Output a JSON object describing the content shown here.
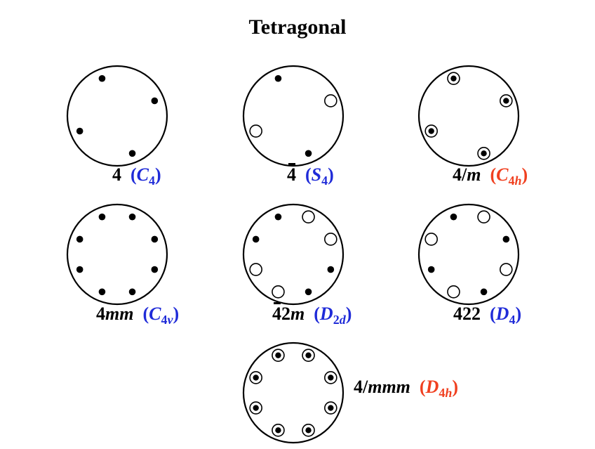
{
  "title": "Tetragonal",
  "colors": {
    "blue": "#1f2bd8",
    "red": "#f04020",
    "black": "#000000"
  },
  "groups": [
    {
      "id": "c4",
      "hm": [
        "4"
      ],
      "hm_italic": [],
      "hm_bar": false,
      "sch": [
        "C",
        "4",
        ""
      ],
      "sch_color": "blue",
      "poles": [
        {
          "azimuth": 112,
          "radius": 0.81,
          "marks": [
            "dot"
          ]
        },
        {
          "azimuth": 22,
          "radius": 0.81,
          "marks": [
            "dot"
          ]
        },
        {
          "azimuth": -68,
          "radius": 0.81,
          "marks": [
            "dot"
          ]
        },
        {
          "azimuth": -158,
          "radius": 0.81,
          "marks": [
            "dot"
          ]
        }
      ]
    },
    {
      "id": "s4",
      "hm": [
        "4"
      ],
      "hm_italic": [],
      "hm_bar": true,
      "sch": [
        "S",
        "4",
        ""
      ],
      "sch_color": "blue",
      "poles": [
        {
          "azimuth": 112,
          "radius": 0.81,
          "marks": [
            "dot"
          ]
        },
        {
          "azimuth": 22,
          "radius": 0.81,
          "marks": [
            "ring"
          ]
        },
        {
          "azimuth": -68,
          "radius": 0.81,
          "marks": [
            "dot"
          ]
        },
        {
          "azimuth": -158,
          "radius": 0.81,
          "marks": [
            "ring"
          ]
        }
      ]
    },
    {
      "id": "c4h",
      "hm": [
        "4/",
        "m"
      ],
      "hm_italic": [
        1
      ],
      "hm_bar": false,
      "sch": [
        "C",
        "4",
        "h"
      ],
      "sch_color": "red",
      "poles": [
        {
          "azimuth": 112,
          "radius": 0.81,
          "marks": [
            "ring",
            "dot"
          ]
        },
        {
          "azimuth": 22,
          "radius": 0.81,
          "marks": [
            "ring",
            "dot"
          ]
        },
        {
          "azimuth": -68,
          "radius": 0.81,
          "marks": [
            "ring",
            "dot"
          ]
        },
        {
          "azimuth": -158,
          "radius": 0.81,
          "marks": [
            "ring",
            "dot"
          ]
        }
      ]
    },
    {
      "id": "c4v",
      "hm": [
        "4",
        "mm"
      ],
      "hm_italic": [
        1
      ],
      "hm_bar": false,
      "sch": [
        "C",
        "4",
        "v"
      ],
      "sch_color": "blue",
      "poles": [
        {
          "azimuth": 68,
          "radius": 0.81,
          "marks": [
            "dot"
          ]
        },
        {
          "azimuth": 112,
          "radius": 0.81,
          "marks": [
            "dot"
          ]
        },
        {
          "azimuth": 158,
          "radius": 0.81,
          "marks": [
            "dot"
          ]
        },
        {
          "azimuth": -158,
          "radius": 0.81,
          "marks": [
            "dot"
          ]
        },
        {
          "azimuth": -112,
          "radius": 0.81,
          "marks": [
            "dot"
          ]
        },
        {
          "azimuth": -68,
          "radius": 0.81,
          "marks": [
            "dot"
          ]
        },
        {
          "azimuth": -22,
          "radius": 0.81,
          "marks": [
            "dot"
          ]
        },
        {
          "azimuth": 22,
          "radius": 0.81,
          "marks": [
            "dot"
          ]
        }
      ]
    },
    {
      "id": "d2d",
      "hm": [
        "4",
        "2",
        "m"
      ],
      "hm_italic": [
        2
      ],
      "hm_bar": true,
      "sch": [
        "D",
        "2d",
        ""
      ],
      "sch_color": "blue",
      "poles": [
        {
          "azimuth": 112,
          "radius": 0.81,
          "marks": [
            "dot"
          ]
        },
        {
          "azimuth": 158,
          "radius": 0.81,
          "marks": [
            "dot"
          ]
        },
        {
          "azimuth": 68,
          "radius": 0.81,
          "marks": [
            "ring"
          ]
        },
        {
          "azimuth": 22,
          "radius": 0.81,
          "marks": [
            "ring"
          ]
        },
        {
          "azimuth": -68,
          "radius": 0.81,
          "marks": [
            "dot"
          ]
        },
        {
          "azimuth": -22,
          "radius": 0.81,
          "marks": [
            "dot"
          ]
        },
        {
          "azimuth": -158,
          "radius": 0.81,
          "marks": [
            "ring"
          ]
        },
        {
          "azimuth": -112,
          "radius": 0.81,
          "marks": [
            "ring"
          ]
        }
      ]
    },
    {
      "id": "d4",
      "hm": [
        "422"
      ],
      "hm_italic": [],
      "hm_bar": false,
      "sch": [
        "D",
        "4",
        ""
      ],
      "sch_color": "blue",
      "poles": [
        {
          "azimuth": 112,
          "radius": 0.81,
          "marks": [
            "dot"
          ]
        },
        {
          "azimuth": 158,
          "radius": 0.81,
          "marks": [
            "ring"
          ]
        },
        {
          "azimuth": 68,
          "radius": 0.81,
          "marks": [
            "ring"
          ]
        },
        {
          "azimuth": 22,
          "radius": 0.81,
          "marks": [
            "dot"
          ]
        },
        {
          "azimuth": -22,
          "radius": 0.81,
          "marks": [
            "ring"
          ]
        },
        {
          "azimuth": -68,
          "radius": 0.81,
          "marks": [
            "dot"
          ]
        },
        {
          "azimuth": -112,
          "radius": 0.81,
          "marks": [
            "ring"
          ]
        },
        {
          "azimuth": -158,
          "radius": 0.81,
          "marks": [
            "dot"
          ]
        }
      ]
    },
    {
      "id": "d4h",
      "hm": [
        "4/",
        "mmm"
      ],
      "hm_italic": [
        1
      ],
      "hm_bar": false,
      "sch": [
        "D",
        "4h",
        ""
      ],
      "sch_color": "red",
      "poles": [
        {
          "azimuth": 68,
          "radius": 0.81,
          "marks": [
            "ring",
            "dot"
          ]
        },
        {
          "azimuth": 112,
          "radius": 0.81,
          "marks": [
            "ring",
            "dot"
          ]
        },
        {
          "azimuth": 158,
          "radius": 0.81,
          "marks": [
            "ring",
            "dot"
          ]
        },
        {
          "azimuth": -158,
          "radius": 0.81,
          "marks": [
            "ring",
            "dot"
          ]
        },
        {
          "azimuth": -112,
          "radius": 0.81,
          "marks": [
            "ring",
            "dot"
          ]
        },
        {
          "azimuth": -68,
          "radius": 0.81,
          "marks": [
            "ring",
            "dot"
          ]
        },
        {
          "azimuth": -22,
          "radius": 0.81,
          "marks": [
            "ring",
            "dot"
          ]
        },
        {
          "azimuth": 22,
          "radius": 0.81,
          "marks": [
            "ring",
            "dot"
          ]
        }
      ]
    }
  ]
}
